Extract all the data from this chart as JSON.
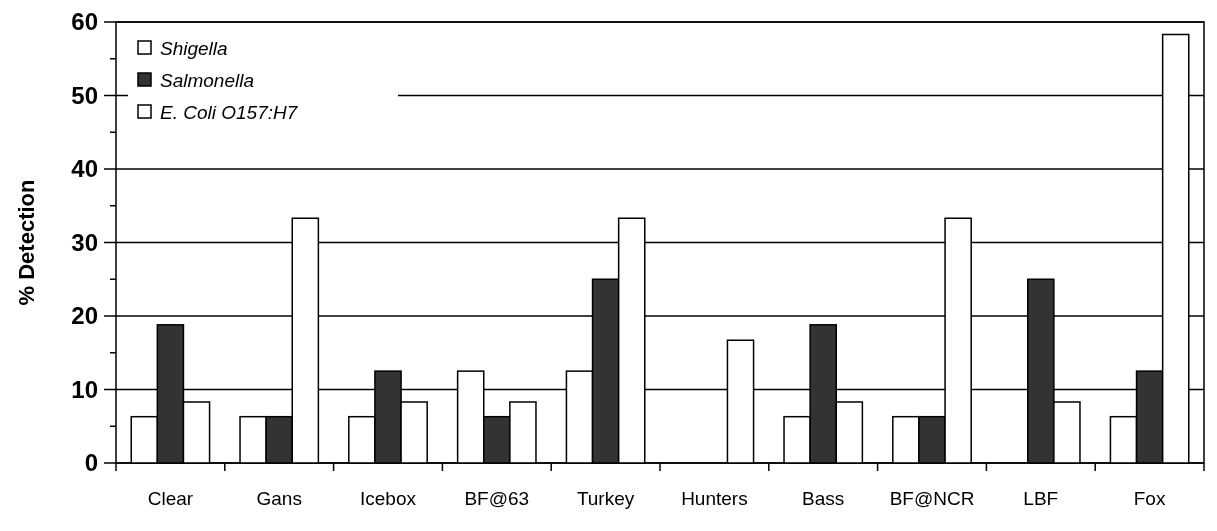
{
  "chart_data": {
    "type": "bar",
    "ylabel": "% Detection",
    "categories": [
      "Clear",
      "Gans",
      "Icebox",
      "BF@63",
      "Turkey",
      "Hunters",
      "Bass",
      "BF@NCR",
      "LBF",
      "Fox"
    ],
    "series": [
      {
        "name": "Shigella",
        "color": "#ffffff",
        "values": [
          6.3,
          6.3,
          6.3,
          12.5,
          12.5,
          0,
          6.3,
          6.3,
          0,
          6.3
        ]
      },
      {
        "name": "Salmonella",
        "color": "#333333",
        "values": [
          18.8,
          6.3,
          12.5,
          6.3,
          25,
          0,
          18.8,
          6.3,
          25,
          12.5
        ]
      },
      {
        "name": "E. Coli O157:H7",
        "color": "#ffffff",
        "values": [
          8.3,
          33.3,
          8.3,
          8.3,
          33.3,
          16.7,
          8.3,
          33.3,
          8.3,
          58.3
        ]
      }
    ],
    "ylim": [
      0,
      60
    ],
    "yticks": [
      0,
      {
        "value": 5,
        "label": null
      },
      10,
      {
        "value": 15,
        "label": null
      },
      20,
      {
        "value": 25,
        "label": null
      },
      30,
      {
        "value": 35,
        "label": null
      },
      40,
      {
        "value": 45,
        "label": null
      },
      50,
      {
        "value": 55,
        "label": null
      },
      60
    ],
    "grid": "y",
    "legend": "top left"
  }
}
